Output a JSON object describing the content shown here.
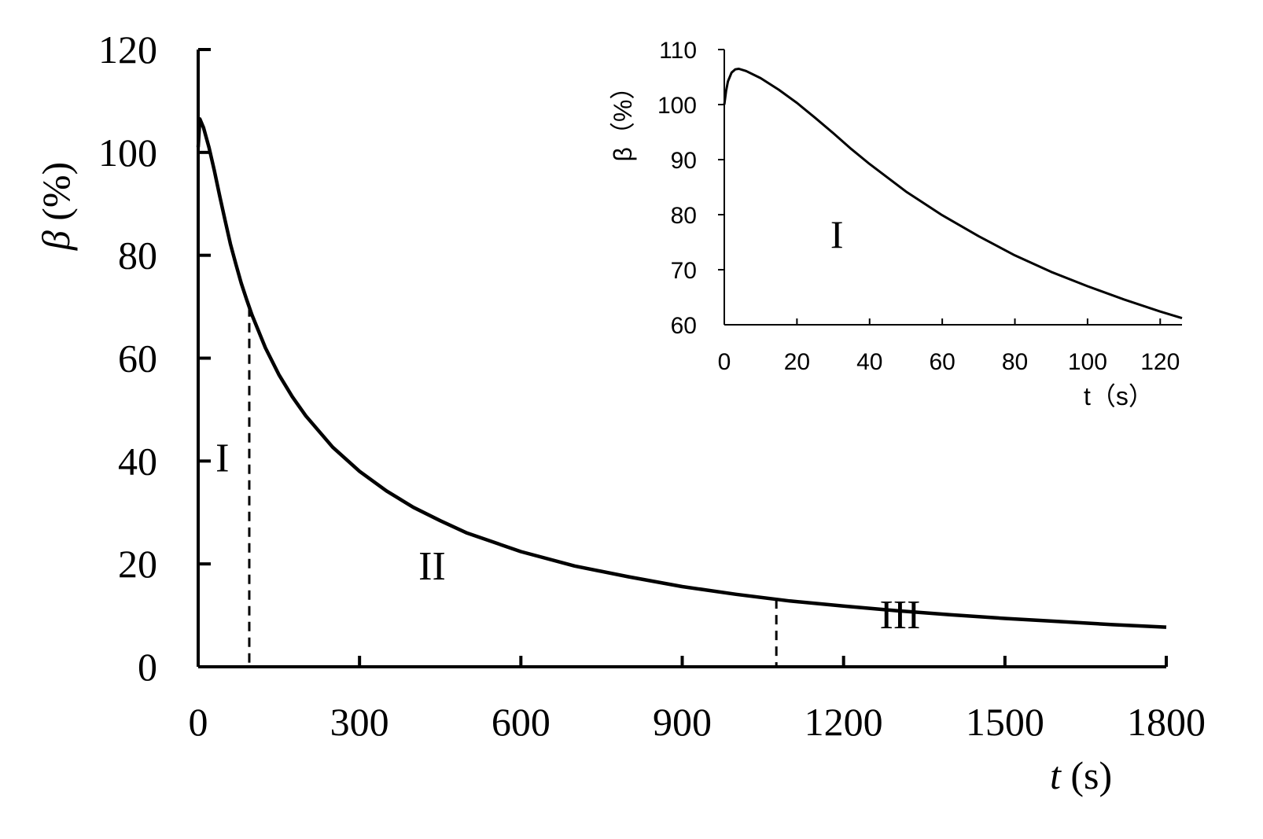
{
  "chart_data": [
    {
      "type": "line",
      "xlabel": {
        "var": "t",
        "unit": " (s)"
      },
      "ylabel": {
        "var": "β",
        "unit": " (%)"
      },
      "xlim": [
        0,
        1800
      ],
      "ylim": [
        0,
        120
      ],
      "xticks": [
        0,
        300,
        600,
        900,
        1200,
        1500,
        1800
      ],
      "yticks": [
        0,
        20,
        40,
        60,
        80,
        100,
        120
      ],
      "grid": false,
      "series": [
        {
          "x": [
            0,
            3,
            10,
            20,
            30,
            40,
            50,
            60,
            70,
            80,
            90,
            100,
            125,
            150,
            175,
            200,
            250,
            300,
            350,
            400,
            450,
            500,
            600,
            700,
            800,
            900,
            1000,
            1100,
            1200,
            1300,
            1400,
            1500,
            1600,
            1700,
            1800
          ],
          "values": [
            101,
            106.5,
            104.8,
            101,
            96.5,
            91.5,
            86.8,
            82.2,
            78.3,
            74.6,
            71.4,
            68.4,
            62,
            56.8,
            52.5,
            48.8,
            42.7,
            38,
            34.2,
            31,
            28.4,
            26,
            22.4,
            19.6,
            17.5,
            15.6,
            14.1,
            12.8,
            11.8,
            10.9,
            10.1,
            9.4,
            8.8,
            8.2,
            7.7
          ]
        }
      ],
      "boundaries": [
        95,
        1075
      ],
      "regions": [
        {
          "label": "I",
          "x": 45,
          "y": 38
        },
        {
          "label": "II",
          "x": 435,
          "y": 17
        },
        {
          "label": "III",
          "x": 1305,
          "y": 7.5
        }
      ]
    },
    {
      "type": "line",
      "xlabel": {
        "var": "t",
        "unit": "（s）"
      },
      "ylabel": {
        "var": "β",
        "unit": "（%）"
      },
      "xlim": [
        0,
        126
      ],
      "ylim": [
        60,
        110
      ],
      "xticks": [
        0,
        20,
        40,
        60,
        80,
        100,
        120
      ],
      "yticks": [
        60,
        70,
        80,
        90,
        100,
        110
      ],
      "grid": false,
      "series": [
        {
          "x": [
            0,
            0.5,
            1,
            2,
            3,
            4,
            6,
            10,
            15,
            20,
            25,
            30,
            35,
            40,
            50,
            60,
            70,
            80,
            90,
            100,
            110,
            120,
            126
          ],
          "values": [
            100,
            102.5,
            104.2,
            105.8,
            106.4,
            106.5,
            106.1,
            104.8,
            102.7,
            100.3,
            97.6,
            94.8,
            91.9,
            89.2,
            84.2,
            79.9,
            76.1,
            72.6,
            69.6,
            67.0,
            64.6,
            62.4,
            61.2
          ]
        }
      ],
      "regions": [
        {
          "label": "I",
          "x": 31,
          "y": 74
        }
      ]
    }
  ]
}
